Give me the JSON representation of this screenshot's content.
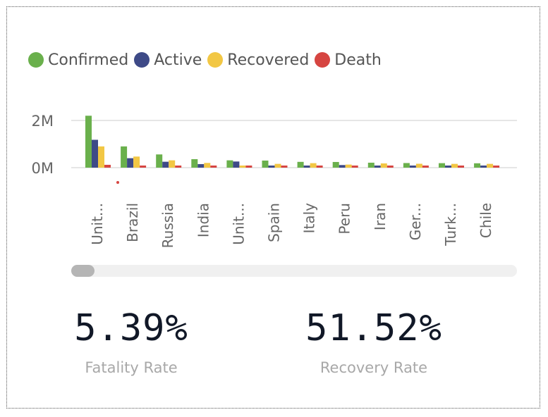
{
  "chart_data": {
    "type": "bar",
    "categories": [
      "Unit...",
      "Brazil",
      "Russia",
      "India",
      "Unit...",
      "Spain",
      "Italy",
      "Peru",
      "Iran",
      "Ger...",
      "Turk...",
      "Chile"
    ],
    "series": [
      {
        "name": "Confirmed",
        "color": "#6ab04c",
        "values": [
          2200000,
          900000,
          560000,
          360000,
          310000,
          300000,
          245000,
          240000,
          210000,
          195000,
          190000,
          185000
        ]
      },
      {
        "name": "Active",
        "color": "#3e4a87",
        "values": [
          1180000,
          400000,
          250000,
          150000,
          260000,
          70000,
          20000,
          110000,
          30000,
          30000,
          60000,
          50000
        ]
      },
      {
        "name": "Recovered",
        "color": "#f2c744",
        "values": [
          900000,
          470000,
          310000,
          200000,
          10000,
          160000,
          190000,
          130000,
          180000,
          165000,
          160000,
          160000
        ]
      },
      {
        "name": "Death",
        "color": "#d64541",
        "values": [
          120000,
          45000,
          8000,
          10000,
          42000,
          28000,
          35000,
          7000,
          10000,
          9000,
          5000,
          4000
        ]
      }
    ],
    "ytick_labels": [
      "2M",
      "0M"
    ],
    "yticks": [
      2000000,
      0
    ],
    "ylim": [
      0,
      2200000
    ],
    "grid": true,
    "legend_position": "top-left"
  },
  "kpis": {
    "fatality": {
      "value": "5.39%",
      "label": "Fatality Rate"
    },
    "recovery": {
      "value": "51.52%",
      "label": "Recovery Rate"
    }
  },
  "colors": {
    "grid": "#e6e6e6",
    "axis_text": "#666666",
    "kpi_value": "#111827",
    "kpi_label": "#a8a8a8"
  }
}
